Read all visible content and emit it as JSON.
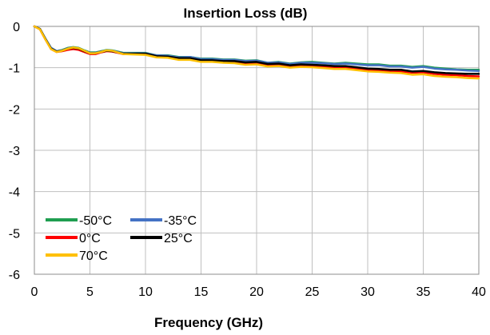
{
  "chart_data": {
    "type": "line",
    "title": "Insertion Loss (dB)",
    "xlabel": "Frequency  (GHz)",
    "ylabel": "",
    "xlim": [
      0,
      40
    ],
    "ylim": [
      -6,
      0
    ],
    "xticks": [
      0,
      5,
      10,
      15,
      20,
      25,
      30,
      35,
      40
    ],
    "yticks": [
      0,
      -1,
      -2,
      -3,
      -4,
      -5,
      -6
    ],
    "grid": true,
    "legend_position": "bottom-left",
    "series": [
      {
        "name": "-50°C",
        "color": "#1f9e50",
        "x": [
          0,
          0.5,
          1,
          1.5,
          2,
          2.5,
          3,
          3.5,
          4,
          4.5,
          5,
          5.5,
          6,
          6.5,
          7,
          7.5,
          8,
          9,
          10,
          11,
          12,
          13,
          14,
          15,
          16,
          17,
          18,
          19,
          20,
          21,
          22,
          23,
          24,
          25,
          26,
          27,
          28,
          29,
          30,
          31,
          32,
          33,
          34,
          35,
          36,
          37,
          38,
          39,
          40
        ],
        "y": [
          0,
          -0.06,
          -0.3,
          -0.52,
          -0.6,
          -0.57,
          -0.52,
          -0.5,
          -0.52,
          -0.58,
          -0.63,
          -0.63,
          -0.6,
          -0.57,
          -0.58,
          -0.61,
          -0.64,
          -0.64,
          -0.64,
          -0.7,
          -0.7,
          -0.74,
          -0.74,
          -0.78,
          -0.78,
          -0.8,
          -0.8,
          -0.83,
          -0.82,
          -0.88,
          -0.86,
          -0.9,
          -0.87,
          -0.86,
          -0.88,
          -0.9,
          -0.88,
          -0.9,
          -0.92,
          -0.92,
          -0.95,
          -0.95,
          -0.98,
          -0.96,
          -1.0,
          -1.02,
          -1.04,
          -1.05,
          -1.05
        ]
      },
      {
        "name": "-35°C",
        "color": "#4472c4",
        "x": [
          0,
          0.5,
          1,
          1.5,
          2,
          2.5,
          3,
          3.5,
          4,
          4.5,
          5,
          5.5,
          6,
          6.5,
          7,
          7.5,
          8,
          9,
          10,
          11,
          12,
          13,
          14,
          15,
          16,
          17,
          18,
          19,
          20,
          21,
          22,
          23,
          24,
          25,
          26,
          27,
          28,
          29,
          30,
          31,
          32,
          33,
          34,
          35,
          36,
          37,
          38,
          39,
          40
        ],
        "y": [
          0,
          -0.06,
          -0.3,
          -0.52,
          -0.6,
          -0.58,
          -0.53,
          -0.51,
          -0.53,
          -0.59,
          -0.64,
          -0.64,
          -0.61,
          -0.58,
          -0.59,
          -0.62,
          -0.65,
          -0.65,
          -0.65,
          -0.7,
          -0.71,
          -0.75,
          -0.74,
          -0.79,
          -0.79,
          -0.81,
          -0.81,
          -0.84,
          -0.83,
          -0.88,
          -0.87,
          -0.91,
          -0.88,
          -0.88,
          -0.89,
          -0.91,
          -0.9,
          -0.92,
          -0.94,
          -0.94,
          -0.97,
          -0.97,
          -1.0,
          -0.98,
          -1.02,
          -1.04,
          -1.05,
          -1.07,
          -1.08
        ]
      },
      {
        "name": "0°C",
        "color": "#ff0000",
        "x": [
          0,
          0.5,
          1,
          1.5,
          2,
          2.5,
          3,
          3.5,
          4,
          4.5,
          5,
          5.5,
          6,
          6.5,
          7,
          7.5,
          8,
          9,
          10,
          11,
          12,
          13,
          14,
          15,
          16,
          17,
          18,
          19,
          20,
          21,
          22,
          23,
          24,
          25,
          26,
          27,
          28,
          29,
          30,
          31,
          32,
          33,
          34,
          35,
          36,
          37,
          38,
          39,
          40
        ],
        "y": [
          0,
          -0.07,
          -0.32,
          -0.55,
          -0.62,
          -0.6,
          -0.57,
          -0.55,
          -0.57,
          -0.62,
          -0.67,
          -0.67,
          -0.63,
          -0.6,
          -0.61,
          -0.64,
          -0.67,
          -0.67,
          -0.68,
          -0.73,
          -0.74,
          -0.78,
          -0.78,
          -0.83,
          -0.83,
          -0.85,
          -0.86,
          -0.89,
          -0.88,
          -0.93,
          -0.92,
          -0.96,
          -0.94,
          -0.95,
          -0.97,
          -0.99,
          -0.99,
          -1.02,
          -1.05,
          -1.06,
          -1.08,
          -1.09,
          -1.12,
          -1.11,
          -1.15,
          -1.17,
          -1.18,
          -1.2,
          -1.21
        ]
      },
      {
        "name": "25°C",
        "color": "#000000",
        "x": [
          0,
          0.5,
          1,
          1.5,
          2,
          2.5,
          3,
          3.5,
          4,
          4.5,
          5,
          5.5,
          6,
          6.5,
          7,
          7.5,
          8,
          9,
          10,
          11,
          12,
          13,
          14,
          15,
          16,
          17,
          18,
          19,
          20,
          21,
          22,
          23,
          24,
          25,
          26,
          27,
          28,
          29,
          30,
          31,
          32,
          33,
          34,
          35,
          36,
          37,
          38,
          39,
          40
        ],
        "y": [
          0,
          -0.06,
          -0.31,
          -0.54,
          -0.61,
          -0.59,
          -0.54,
          -0.52,
          -0.54,
          -0.6,
          -0.65,
          -0.65,
          -0.62,
          -0.59,
          -0.6,
          -0.63,
          -0.66,
          -0.66,
          -0.66,
          -0.72,
          -0.73,
          -0.77,
          -0.77,
          -0.82,
          -0.82,
          -0.84,
          -0.84,
          -0.87,
          -0.86,
          -0.91,
          -0.9,
          -0.94,
          -0.92,
          -0.93,
          -0.94,
          -0.96,
          -0.96,
          -0.99,
          -1.02,
          -1.03,
          -1.05,
          -1.05,
          -1.09,
          -1.08,
          -1.11,
          -1.13,
          -1.14,
          -1.15,
          -1.15
        ]
      },
      {
        "name": "70°C",
        "color": "#ffc000",
        "x": [
          0,
          0.5,
          1,
          1.5,
          2,
          2.5,
          3,
          3.5,
          4,
          4.5,
          5,
          5.5,
          6,
          6.5,
          7,
          7.5,
          8,
          9,
          10,
          11,
          12,
          13,
          14,
          15,
          16,
          17,
          18,
          19,
          20,
          21,
          22,
          23,
          24,
          25,
          26,
          27,
          28,
          29,
          30,
          31,
          32,
          33,
          34,
          35,
          36,
          37,
          38,
          39,
          40
        ],
        "y": [
          0,
          -0.07,
          -0.32,
          -0.55,
          -0.62,
          -0.59,
          -0.54,
          -0.51,
          -0.53,
          -0.59,
          -0.65,
          -0.65,
          -0.62,
          -0.58,
          -0.59,
          -0.63,
          -0.67,
          -0.68,
          -0.69,
          -0.75,
          -0.76,
          -0.81,
          -0.81,
          -0.86,
          -0.86,
          -0.88,
          -0.89,
          -0.93,
          -0.92,
          -0.97,
          -0.96,
          -1.0,
          -0.98,
          -0.99,
          -1.01,
          -1.03,
          -1.03,
          -1.06,
          -1.09,
          -1.1,
          -1.12,
          -1.13,
          -1.17,
          -1.16,
          -1.2,
          -1.22,
          -1.23,
          -1.25,
          -1.26
        ]
      }
    ]
  }
}
